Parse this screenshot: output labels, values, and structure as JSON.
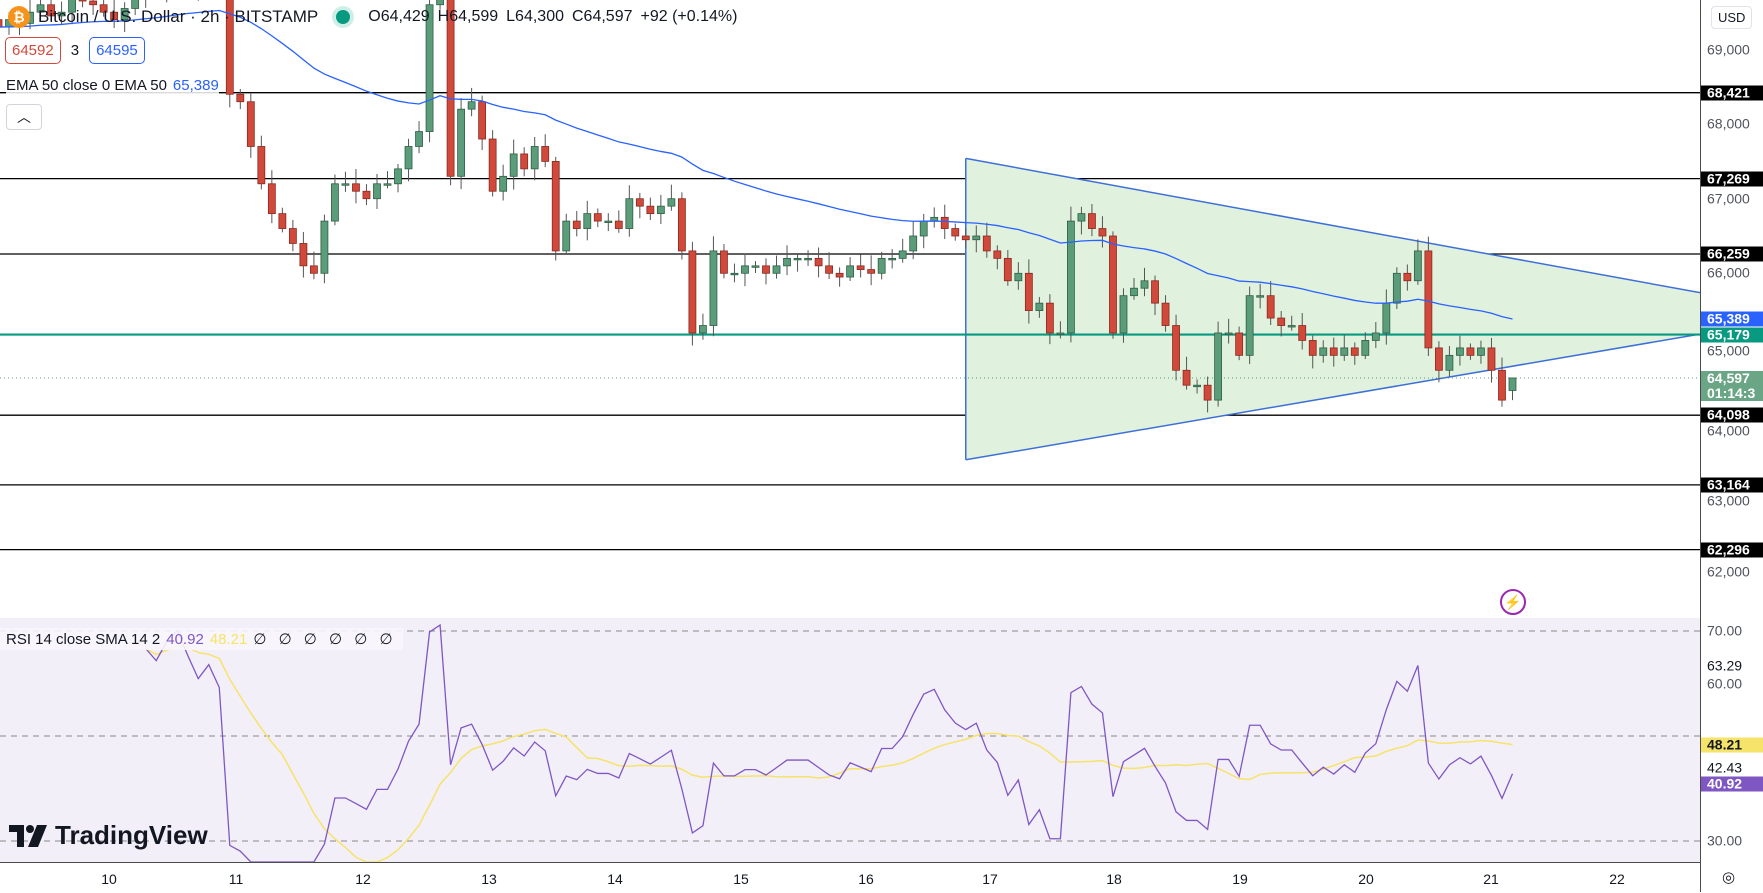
{
  "header": {
    "symbol_icon": "bitcoin-icon",
    "title": "Bitcoin / U.S. Dollar · 2h · BITSTAMP",
    "ohlc": {
      "open": "O64,429",
      "high": "H64,599",
      "low": "L64,300",
      "close": "C64,597",
      "change": "+92 (+0.14%)"
    },
    "bid": "64592",
    "spread": "3",
    "ask": "64595",
    "ema_label": "EMA 50 close 0 EMA 50",
    "ema_value": "65,389",
    "collapse_icon": "chevron-up-icon"
  },
  "rsi_legend": {
    "label": "RSI 14 close SMA 14 2",
    "rsi_value": "40.92",
    "sma_value": "48.21",
    "placeholders": "∅ ∅ ∅ ∅ ∅ ∅"
  },
  "axis": {
    "currency": "USD",
    "price_ticks": [
      "69,000",
      "68,000",
      "67,000",
      "66,000",
      "65,000",
      "64,000",
      "63,000",
      "62,000"
    ],
    "rsi_ticks": [
      "70.00",
      "63.29",
      "60.00",
      "42.43",
      "30.00"
    ],
    "countdown": "01:14:3"
  },
  "branding": {
    "logo_text": "TradingView"
  },
  "colors": {
    "up": "#5b9c7a",
    "down": "#d1493b",
    "ema": "#2962ff",
    "support_green": "#089981",
    "triangle_fill": "#e0f1de",
    "rsi": "#7e57c2",
    "rsi_sma": "#f5e36a"
  },
  "chart_data": [
    {
      "type": "candlestick",
      "title": "Bitcoin / U.S. Dollar · 2h · BITSTAMP",
      "ylabel": "USD",
      "ylim": [
        61500,
        69700
      ],
      "x_tick_labels": [
        "10",
        "11",
        "12",
        "13",
        "14",
        "15",
        "16",
        "17",
        "18",
        "19",
        "20",
        "21",
        "22"
      ],
      "closes": [
        69300,
        69400,
        69350,
        69500,
        69600,
        69450,
        69500,
        69700,
        69650,
        69600,
        69500,
        69400,
        69550,
        69700,
        69800,
        69750,
        69900,
        70000,
        69900,
        69800,
        69900,
        69800,
        68400,
        68300,
        67700,
        67200,
        66800,
        66600,
        66400,
        66100,
        66000,
        66700,
        67200,
        67200,
        67100,
        67000,
        67200,
        67200,
        67400,
        67700,
        67900,
        69600,
        69800,
        67300,
        68200,
        68300,
        67800,
        67100,
        67300,
        67600,
        67400,
        67700,
        67500,
        66300,
        66700,
        66600,
        66800,
        66700,
        66700,
        66600,
        67000,
        66900,
        66800,
        66900,
        67000,
        66300,
        65200,
        65300,
        66300,
        66000,
        66000,
        66100,
        66100,
        66000,
        66100,
        66200,
        66200,
        66200,
        66100,
        66000,
        65950,
        66100,
        66050,
        66000,
        66200,
        66200,
        66300,
        66500,
        66700,
        66750,
        66600,
        66500,
        66450,
        66500,
        66300,
        66200,
        65900,
        66000,
        65500,
        65600,
        65200,
        65200,
        66700,
        66800,
        66600,
        66500,
        65200,
        65700,
        65800,
        65900,
        65600,
        65300,
        64700,
        64500,
        64500,
        64300,
        65200,
        65200,
        64900,
        65700,
        65700,
        65400,
        65300,
        65300,
        65100,
        64900,
        65000,
        64900,
        65000,
        64900,
        65100,
        65200,
        65600,
        66000,
        65900,
        66300,
        65000,
        64700,
        64900,
        65000,
        64900,
        65000,
        64700,
        64300,
        64597
      ],
      "last": {
        "open": 64429,
        "high": 64599,
        "low": 64300,
        "close": 64597
      },
      "ema": {
        "period": 50,
        "last_value": 65389
      },
      "horizontal_levels": [
        68421,
        67269,
        66259,
        64098,
        63164,
        62296
      ],
      "support_level": 65179,
      "current_price": 64597,
      "triangle": {
        "left_top": 67540,
        "left_bottom": 63500,
        "right_top": 65740,
        "right_bottom": 65185,
        "start_day": "17"
      }
    },
    {
      "type": "line",
      "title": "RSI 14 close SMA 14 2",
      "series": [
        {
          "name": "RSI",
          "last": 40.92
        },
        {
          "name": "SMA",
          "last": 48.21
        }
      ],
      "ylim": [
        28,
        72
      ],
      "bands": [
        70,
        50,
        30
      ]
    }
  ]
}
